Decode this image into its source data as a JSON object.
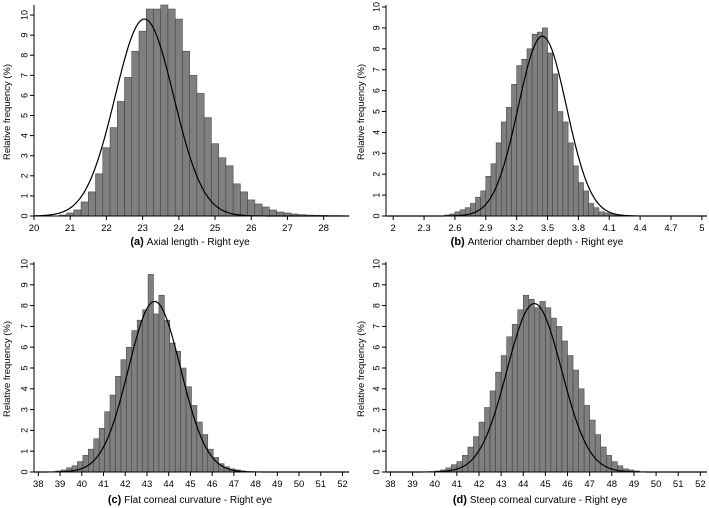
{
  "colors": {
    "bar_fill": "#7f7f7f",
    "bar_stroke": "#3a3a3a",
    "curve": "#000000",
    "axis": "#000000",
    "background": "#ffffff"
  },
  "chart_data": [
    {
      "type": "bar",
      "ylabel": "Relative frequency (%)",
      "caption_letter": "(a)",
      "caption_text": "Axial length - Right eye",
      "xlim": [
        20,
        28.7
      ],
      "ylim": [
        0,
        10.4
      ],
      "xticks": [
        20,
        21,
        22,
        23,
        24,
        25,
        26,
        27,
        28
      ],
      "yticks": [
        0,
        1,
        2,
        3,
        4,
        5,
        6,
        7,
        8,
        9,
        10
      ],
      "bin_start": 20.7,
      "bin_width": 0.2,
      "values": [
        0.05,
        0.15,
        0.3,
        0.7,
        1.2,
        2.1,
        3.4,
        4.4,
        5.7,
        6.9,
        8.2,
        9.2,
        10.3,
        10.3,
        10.5,
        10.3,
        9.8,
        8.2,
        7.0,
        6.1,
        4.9,
        3.6,
        2.9,
        2.5,
        1.6,
        1.2,
        0.8,
        0.6,
        0.45,
        0.3,
        0.2,
        0.15,
        0.1,
        0.07,
        0.05,
        0.04,
        0.03,
        0.02,
        0.02,
        0.01
      ],
      "normal_curve": {
        "mean": 23.05,
        "sd": 0.81,
        "peak": 9.8
      }
    },
    {
      "type": "bar",
      "ylabel": "Relative frequency (%)",
      "caption_letter": "(b)",
      "caption_text": "Anterior chamber depth - Right eye",
      "xlim": [
        1.93,
        5.05
      ],
      "ylim": [
        0,
        10
      ],
      "xticks": [
        "2",
        "2.3",
        "2.6",
        "2.9",
        "3.2",
        "3.5",
        "3.8",
        "4.1",
        "4.4",
        "4.7",
        "5"
      ],
      "yticks": [
        0,
        1,
        2,
        3,
        4,
        5,
        6,
        7,
        8,
        9,
        10
      ],
      "bin_start": 2.5,
      "bin_width": 0.05,
      "values": [
        0.05,
        0.1,
        0.2,
        0.3,
        0.4,
        0.6,
        0.9,
        1.2,
        1.9,
        2.5,
        3.5,
        4.5,
        5.2,
        6.3,
        7.2,
        7.5,
        8.0,
        8.7,
        8.8,
        9.0,
        7.8,
        6.8,
        5.0,
        4.5,
        3.5,
        2.4,
        1.6,
        1.2,
        0.6,
        0.4,
        0.2,
        0.15,
        0.1,
        0.05,
        0.03
      ],
      "normal_curve": {
        "mean": 3.45,
        "sd": 0.235,
        "peak": 8.6
      }
    },
    {
      "type": "bar",
      "ylabel": "Relative frequency (%)",
      "caption_letter": "(c)",
      "caption_text": "Flat corneal curvature - Right eye",
      "xlim": [
        37.8,
        52.3
      ],
      "ylim": [
        0,
        10
      ],
      "xticks": [
        38,
        39,
        40,
        41,
        42,
        43,
        44,
        45,
        46,
        47,
        48,
        49,
        50,
        51,
        52
      ],
      "yticks": [
        0,
        1,
        2,
        3,
        4,
        5,
        6,
        7,
        8,
        9,
        10
      ],
      "bin_start": 38.8,
      "bin_width": 0.25,
      "values": [
        0.05,
        0.1,
        0.2,
        0.3,
        0.5,
        0.8,
        1.1,
        1.6,
        2.1,
        2.9,
        3.7,
        4.6,
        5.4,
        6.0,
        6.8,
        7.3,
        7.8,
        9.5,
        7.6,
        8.5,
        7.3,
        6.2,
        5.8,
        5.0,
        4.1,
        3.2,
        2.4,
        1.8,
        1.1,
        0.7,
        0.4,
        0.25,
        0.15,
        0.1,
        0.05
      ],
      "normal_curve": {
        "mean": 43.35,
        "sd": 1.2,
        "peak": 8.2
      }
    },
    {
      "type": "bar",
      "ylabel": "Relative frequency (%)",
      "caption_letter": "(d)",
      "caption_text": "Steep corneal curvature - Right eye",
      "xlim": [
        37.8,
        52.3
      ],
      "ylim": [
        0,
        10
      ],
      "xticks": [
        38,
        39,
        40,
        41,
        42,
        43,
        44,
        45,
        46,
        47,
        48,
        49,
        50,
        51,
        52
      ],
      "yticks": [
        0,
        1,
        2,
        3,
        4,
        5,
        6,
        7,
        8,
        9,
        10
      ],
      "bin_start": 40.0,
      "bin_width": 0.25,
      "values": [
        0.05,
        0.1,
        0.2,
        0.35,
        0.5,
        0.8,
        1.2,
        1.7,
        2.4,
        3.1,
        3.9,
        4.8,
        5.6,
        6.5,
        7.1,
        7.8,
        8.5,
        8.3,
        7.9,
        8.2,
        7.9,
        7.4,
        7.0,
        6.3,
        5.6,
        4.9,
        4.0,
        3.2,
        2.5,
        1.8,
        1.2,
        0.8,
        0.5,
        0.3,
        0.15,
        0.1,
        0.05
      ],
      "normal_curve": {
        "mean": 44.5,
        "sd": 1.23,
        "peak": 8.1
      }
    }
  ]
}
